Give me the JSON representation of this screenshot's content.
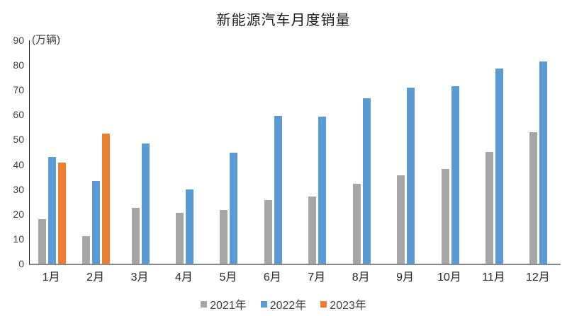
{
  "chart_data": {
    "type": "bar",
    "title": "新能源汽车月度销量",
    "ylabel": "(万辆)",
    "xlabel": "",
    "categories": [
      "1月",
      "2月",
      "3月",
      "4月",
      "5月",
      "6月",
      "7月",
      "8月",
      "9月",
      "10月",
      "11月",
      "12月"
    ],
    "series": [
      {
        "name": "2021年",
        "color": "#A6A6A6",
        "values": [
          17.9,
          11.0,
          22.6,
          20.6,
          21.7,
          25.6,
          27.1,
          32.1,
          35.7,
          38.3,
          45.0,
          53.1
        ]
      },
      {
        "name": "2022年",
        "color": "#5B9BD5",
        "values": [
          43.1,
          33.4,
          48.4,
          29.9,
          44.7,
          59.6,
          59.3,
          66.6,
          70.8,
          71.4,
          78.6,
          81.4
        ]
      },
      {
        "name": "2023年",
        "color": "#ED7D31",
        "values": [
          40.8,
          52.5,
          null,
          null,
          null,
          null,
          null,
          null,
          null,
          null,
          null,
          null
        ]
      }
    ],
    "ylim": [
      0,
      90
    ],
    "yticks": [
      0,
      10,
      20,
      30,
      40,
      50,
      60,
      70,
      80,
      90
    ],
    "grid": false,
    "legend_position": "bottom",
    "axis_colors": {
      "y_axis_line": "#262626",
      "x_axis_line": "#898989",
      "tick_label": "#404040"
    }
  }
}
